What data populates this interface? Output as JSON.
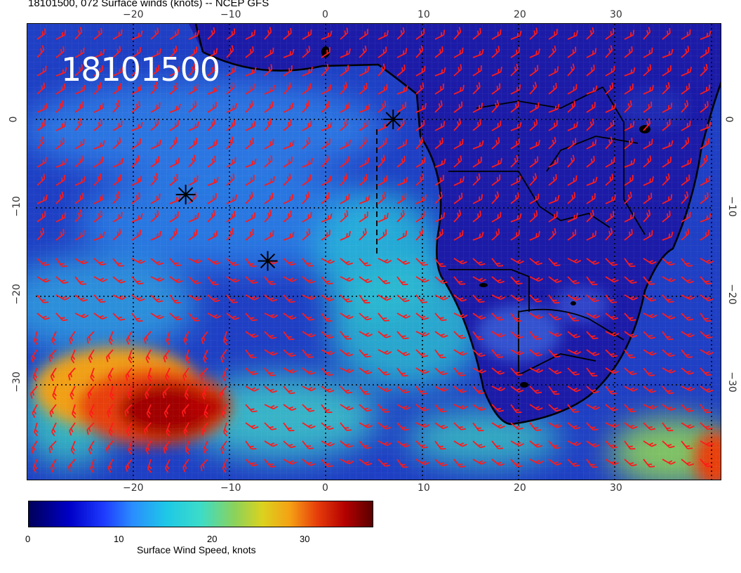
{
  "title": "18101500, 072 Surface winds (knots) -- NCEP GFS",
  "date_stamp": "18101500",
  "axes": {
    "top_lon_labels": [
      "−20",
      "−10",
      "0",
      "10",
      "20",
      "30"
    ],
    "bottom_lon_labels": [
      "−20",
      "−10",
      "0",
      "10",
      "20",
      "30"
    ],
    "left_lat_labels": [
      "0",
      "−10",
      "−20",
      "−30"
    ],
    "right_lat_labels": [
      "0",
      "−10",
      "−20",
      "−30"
    ]
  },
  "colorbar": {
    "label": "Surface Wind Speed, knots",
    "ticks": [
      "0",
      "10",
      "20",
      "30"
    ]
  },
  "colors": {
    "ocean_low": "#1a2fb8",
    "land": "#1414a0",
    "barb": "#ff1a1a",
    "coast": "#000000"
  },
  "markers": [
    {
      "name": "storm-marker-1",
      "lon": -14.5,
      "lat": -8.5
    },
    {
      "name": "storm-marker-2",
      "lon": -6,
      "lat": -16
    },
    {
      "name": "storm-marker-3",
      "lon": 7,
      "lat": 0
    }
  ]
}
